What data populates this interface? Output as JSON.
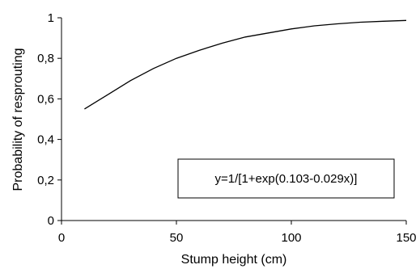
{
  "chart_data": {
    "type": "line",
    "title": "",
    "xlabel": "Stump height (cm)",
    "ylabel": "Probability of resprouting",
    "xlim": [
      0,
      150
    ],
    "ylim": [
      0,
      1
    ],
    "x_ticks": [
      0,
      50,
      100,
      150
    ],
    "y_ticks": [
      0,
      0.2,
      0.4,
      0.6,
      0.8,
      1
    ],
    "x_tick_labels": [
      "0",
      "50",
      "100",
      "150"
    ],
    "y_tick_labels": [
      "0",
      "0,2",
      "0,4",
      "0,6",
      "0,8",
      "1"
    ],
    "grid": false,
    "legend": "none",
    "series": [
      {
        "color": "#000000",
        "x": [
          10,
          20,
          30,
          40,
          50,
          60,
          70,
          80,
          90,
          100,
          110,
          120,
          130,
          140,
          150
        ],
        "y": [
          0.55,
          0.62,
          0.69,
          0.75,
          0.8,
          0.84,
          0.875,
          0.905,
          0.925,
          0.945,
          0.96,
          0.97,
          0.978,
          0.983,
          0.987
        ]
      }
    ],
    "annotation": "y=1/[1+exp(0.103-0.029x)]"
  }
}
